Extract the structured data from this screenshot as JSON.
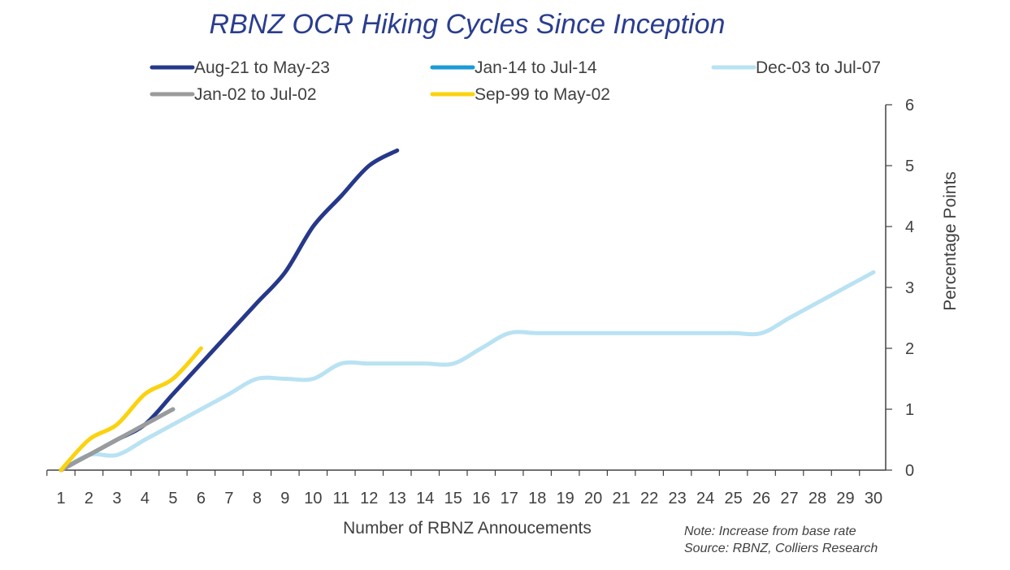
{
  "chart_data": {
    "type": "line",
    "title": "RBNZ OCR Hiking Cycles Since Inception",
    "xlabel": "Number of RBNZ Annoucements",
    "ylabel": "Percentage Points",
    "x_ticks": [
      "1",
      "2",
      "3",
      "4",
      "5",
      "6",
      "7",
      "8",
      "9",
      "10",
      "11",
      "12",
      "13",
      "14",
      "15",
      "16",
      "17",
      "18",
      "19",
      "20",
      "21",
      "22",
      "23",
      "24",
      "25",
      "26",
      "27",
      "28",
      "29",
      "30"
    ],
    "xlim": [
      1,
      30
    ],
    "y_ticks": [
      "0",
      "1",
      "2",
      "3",
      "4",
      "5",
      "6"
    ],
    "ylim": [
      0,
      6
    ],
    "y_axis_side": "right",
    "legend_position": "top",
    "series": [
      {
        "name": "Aug-21 to May-23",
        "color": "#26388a",
        "x": [
          1,
          2,
          3,
          4,
          5,
          6,
          7,
          8,
          9,
          10,
          11,
          12,
          13
        ],
        "y": [
          0,
          0.25,
          0.5,
          0.75,
          1.25,
          1.75,
          2.25,
          2.75,
          3.25,
          4.0,
          4.5,
          5.0,
          5.25
        ]
      },
      {
        "name": "Jan-14 to Jul-14",
        "color": "#1b9ad6",
        "x": [
          1,
          2,
          3,
          4,
          5
        ],
        "y": [
          0,
          0.25,
          0.5,
          0.75,
          1.0
        ]
      },
      {
        "name": "Dec-03 to Jul-07",
        "color": "#b9e2f3",
        "x": [
          1,
          2,
          3,
          4,
          5,
          6,
          7,
          8,
          9,
          10,
          11,
          12,
          13,
          14,
          15,
          16,
          17,
          18,
          19,
          20,
          21,
          22,
          23,
          24,
          25,
          26,
          27,
          28,
          29,
          30
        ],
        "y": [
          0,
          0.25,
          0.25,
          0.5,
          0.75,
          1.0,
          1.25,
          1.5,
          1.5,
          1.5,
          1.75,
          1.75,
          1.75,
          1.75,
          1.75,
          2.0,
          2.25,
          2.25,
          2.25,
          2.25,
          2.25,
          2.25,
          2.25,
          2.25,
          2.25,
          2.25,
          2.5,
          2.75,
          3.0,
          3.25
        ]
      },
      {
        "name": "Jan-02 to Jul-02",
        "color": "#9b9b9b",
        "x": [
          1,
          2,
          3,
          4,
          5
        ],
        "y": [
          0,
          0.25,
          0.5,
          0.75,
          1.0
        ]
      },
      {
        "name": "Sep-99 to May-02",
        "color": "#fbd20f",
        "x": [
          1,
          2,
          3,
          4,
          5,
          6
        ],
        "y": [
          0,
          0.5,
          0.75,
          1.25,
          1.5,
          2.0
        ]
      }
    ],
    "note": "Note: Increase from base rate",
    "source": "Source: RBNZ, Colliers Research"
  }
}
